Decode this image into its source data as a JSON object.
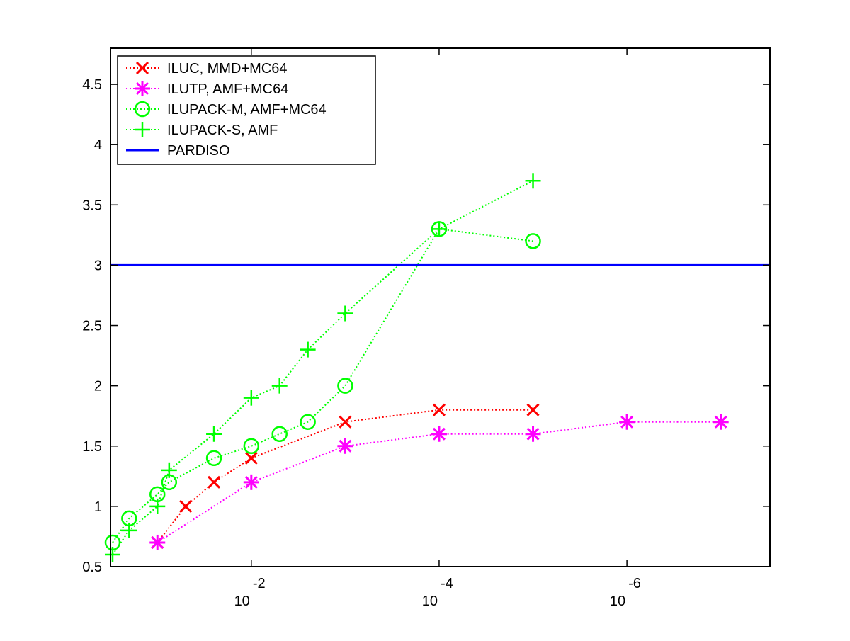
{
  "chart_data": {
    "type": "line",
    "title": "",
    "xlabel": "",
    "ylabel": "",
    "x_scale": "log",
    "x_reversed": true,
    "xlim": [
      0.316,
      3e-08
    ],
    "ylim": [
      0.5,
      4.8
    ],
    "grid": false,
    "legend_position": "top-left",
    "x_ticks": [
      {
        "value": 0.01,
        "base": "10",
        "exponent": "-2"
      },
      {
        "value": 0.0001,
        "base": "10",
        "exponent": "-4"
      },
      {
        "value": 1e-06,
        "base": "10",
        "exponent": "-6"
      }
    ],
    "y_ticks": [
      "0.5",
      "1",
      "1.5",
      "2",
      "2.5",
      "3",
      "3.5",
      "4",
      "4.5"
    ],
    "series": [
      {
        "name": "ILUC, MMD+MC64",
        "color": "#ff0000",
        "marker": "x",
        "line_style": "dotted",
        "x": [
          0.1,
          0.05,
          0.025,
          0.01,
          0.001,
          0.0001,
          1e-05
        ],
        "y": [
          0.7,
          1.0,
          1.2,
          1.4,
          1.7,
          1.8,
          1.8
        ]
      },
      {
        "name": "ILUTP, AMF+MC64",
        "color": "#ff00ff",
        "marker": "asterisk",
        "line_style": "dotted",
        "x": [
          0.1,
          0.01,
          0.001,
          0.0001,
          1e-05,
          1e-06,
          1e-07
        ],
        "y": [
          0.7,
          1.2,
          1.5,
          1.6,
          1.6,
          1.7,
          1.7
        ]
      },
      {
        "name": "ILUPACK-M, AMF+MC64",
        "color": "#00ff00",
        "marker": "circle",
        "line_style": "dotted",
        "x": [
          0.3,
          0.2,
          0.1,
          0.075,
          0.025,
          0.01,
          0.005,
          0.0025,
          0.001,
          0.0001,
          1e-05
        ],
        "y": [
          0.7,
          0.9,
          1.1,
          1.2,
          1.4,
          1.5,
          1.6,
          1.7,
          2.0,
          3.3,
          3.2
        ]
      },
      {
        "name": "ILUPACK-S, AMF",
        "color": "#00ff00",
        "marker": "plus",
        "line_style": "dotted",
        "x": [
          0.3,
          0.2,
          0.1,
          0.075,
          0.025,
          0.01,
          0.005,
          0.0025,
          0.001,
          0.0001,
          1e-05
        ],
        "y": [
          0.6,
          0.8,
          1.0,
          1.3,
          1.6,
          1.9,
          2.0,
          2.3,
          2.6,
          3.3,
          3.7
        ]
      },
      {
        "name": "PARDISO",
        "color": "#0000ff",
        "marker": "none",
        "line_style": "solid",
        "x": [
          0.316,
          3e-08
        ],
        "y": [
          3.0,
          3.0
        ]
      }
    ]
  }
}
